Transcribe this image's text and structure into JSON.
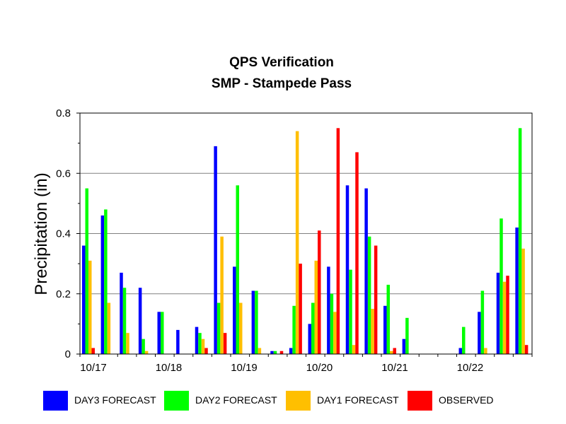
{
  "chart_data": {
    "type": "bar",
    "title": "QPS Verification",
    "subtitle": "SMP - Stampede Pass",
    "ylabel": "Precipitation (in)",
    "xlabel": "",
    "ylim": [
      0,
      0.8
    ],
    "yticks": [
      "0",
      "0.2",
      "0.4",
      "0.6",
      "0.8"
    ],
    "grid": true,
    "legend_position": "bottom",
    "date_labels": [
      {
        "label": "10/17",
        "slot": 0
      },
      {
        "label": "10/18",
        "slot": 4
      },
      {
        "label": "10/19",
        "slot": 8
      },
      {
        "label": "10/20",
        "slot": 12
      },
      {
        "label": "10/21",
        "slot": 16
      },
      {
        "label": "10/22",
        "slot": 20
      }
    ],
    "series": [
      {
        "name": "DAY3 FORECAST",
        "color": "#0000ff",
        "values": [
          0.36,
          0.46,
          0.27,
          0.22,
          0.14,
          0.08,
          0.09,
          0.69,
          0.29,
          0.21,
          0.01,
          0.02,
          0.1,
          0.29,
          0.56,
          0.55,
          0.16,
          0.05,
          0,
          0,
          0.02,
          0.14,
          0.27,
          0.42
        ]
      },
      {
        "name": "DAY2 FORECAST",
        "color": "#00ff00",
        "values": [
          0.55,
          0.48,
          0.22,
          0.05,
          0.14,
          0,
          0.07,
          0.17,
          0.56,
          0.21,
          0.01,
          0.16,
          0.17,
          0.2,
          0.28,
          0.39,
          0.23,
          0.12,
          0,
          0,
          0.09,
          0.21,
          0.45,
          0.75
        ]
      },
      {
        "name": "DAY1 FORECAST",
        "color": "#ffbf00",
        "values": [
          0.31,
          0.17,
          0.07,
          0.01,
          0,
          0,
          0.05,
          0.39,
          0.17,
          0.02,
          0,
          0.74,
          0.31,
          0.14,
          0.03,
          0.15,
          0.01,
          0,
          0,
          0,
          0,
          0.02,
          0.24,
          0.35
        ]
      },
      {
        "name": "OBSERVED",
        "color": "#ff0000",
        "values": [
          0.02,
          0,
          0,
          0,
          0,
          0,
          0.02,
          0.07,
          0,
          0,
          0.01,
          0.3,
          0.41,
          0.75,
          0.67,
          0.36,
          0.02,
          0,
          0,
          0,
          0,
          0,
          0.26,
          0.03
        ]
      }
    ]
  }
}
